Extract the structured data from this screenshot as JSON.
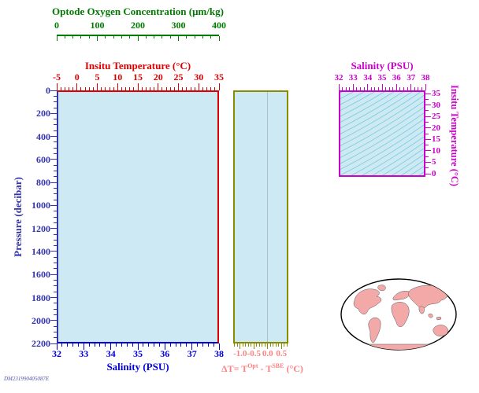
{
  "colors": {
    "plot_bg": "#cdeaf4",
    "oxygen": "#007a00",
    "temperature": "#dd0000",
    "pressure": "#3333aa",
    "salinity": "#0000dd",
    "dt_frame": "#8b8b00",
    "dt_text": "#ff8080",
    "ts": "#cc00cc",
    "isopycnal": "#7ecbdd",
    "land": "#f4a9a9",
    "map_outline": "#000000"
  },
  "oxygen_axis": {
    "title": "Optode Oxygen Concentration (μm/kg)",
    "ticks": [
      "0",
      "100",
      "200",
      "300",
      "400"
    ]
  },
  "temperature_axis": {
    "title": "Insitu Temperature (°C)",
    "ticks": [
      "-5",
      "0",
      "5",
      "10",
      "15",
      "20",
      "25",
      "30",
      "35"
    ]
  },
  "pressure_axis": {
    "title": "Pressure (decibar)",
    "ticks": [
      "0",
      "200",
      "400",
      "600",
      "800",
      "1000",
      "1200",
      "1400",
      "1600",
      "1800",
      "2000",
      "2200"
    ]
  },
  "salinity_axis": {
    "title": "Salinity (PSU)",
    "ticks": [
      "32",
      "33",
      "34",
      "35",
      "36",
      "37",
      "38"
    ]
  },
  "dt_axis": {
    "ticks": [
      "-1.0",
      "-0.5",
      "0.0",
      "0.5"
    ],
    "label": {
      "pre": "ΔT= T",
      "sup1": "Opt",
      "mid": " - T",
      "sup2": "SBE",
      "post": " (°C)"
    }
  },
  "ts_plot": {
    "salinity_title": "Salinity (PSU)",
    "salinity_ticks": [
      "32",
      "33",
      "34",
      "35",
      "36",
      "37",
      "38"
    ],
    "temperature_title": "Insitu Temperature (°C)",
    "temperature_ticks": [
      "35",
      "30",
      "25",
      "20",
      "15",
      "10",
      "5",
      "0"
    ]
  },
  "footer_stamp": "DM231990405087E",
  "chart_data": [
    {
      "type": "line",
      "title": "Main profile plot (empty axes, no profile traces plotted)",
      "axes": {
        "bottom": {
          "label": "Salinity (PSU)",
          "range": [
            32,
            38
          ],
          "ticks": [
            32,
            33,
            34,
            35,
            36,
            37,
            38
          ]
        },
        "left": {
          "label": "Pressure (decibar)",
          "range": [
            0,
            2200
          ],
          "inverted": true,
          "ticks": [
            0,
            200,
            400,
            600,
            800,
            1000,
            1200,
            1400,
            1600,
            1800,
            2000,
            2200
          ]
        },
        "top_inner": {
          "label": "Insitu Temperature (°C)",
          "range": [
            -5,
            35
          ],
          "ticks": [
            -5,
            0,
            5,
            10,
            15,
            20,
            25,
            30,
            35
          ]
        },
        "top_outer": {
          "label": "Optode Oxygen Concentration (μm/kg)",
          "range": [
            0,
            400
          ],
          "ticks": [
            0,
            100,
            200,
            300,
            400
          ]
        }
      },
      "grid": false,
      "series": []
    },
    {
      "type": "line",
      "title": "Temperature difference vs pressure (empty, no traces plotted)",
      "axes": {
        "bottom": {
          "label": "ΔT= T^Opt - T^SBE (°C)",
          "range": [
            -1.25,
            0.75
          ],
          "ticks": [
            -1.0,
            -0.5,
            0.0,
            0.5
          ]
        },
        "left": {
          "label": "Pressure (decibar)",
          "range": [
            0,
            2200
          ],
          "inverted": true
        }
      },
      "gridline_x": 0.0,
      "series": []
    },
    {
      "type": "line",
      "title": "T-S diagram with isopycnal contour background (no data traces)",
      "axes": {
        "top": {
          "label": "Salinity (PSU)",
          "range": [
            32,
            38
          ],
          "ticks": [
            32,
            33,
            34,
            35,
            36,
            37,
            38
          ]
        },
        "right": {
          "label": "Insitu Temperature (°C)",
          "range": [
            0,
            35
          ],
          "ticks": [
            35,
            30,
            25,
            20,
            15,
            10,
            5,
            0
          ]
        }
      },
      "annotations": [
        "family of isopycnal (density) contour lines, light blue"
      ],
      "series": []
    },
    {
      "type": "map",
      "title": "Global map, elliptical (Hammer-type) projection, land shaded pink",
      "series": []
    }
  ]
}
